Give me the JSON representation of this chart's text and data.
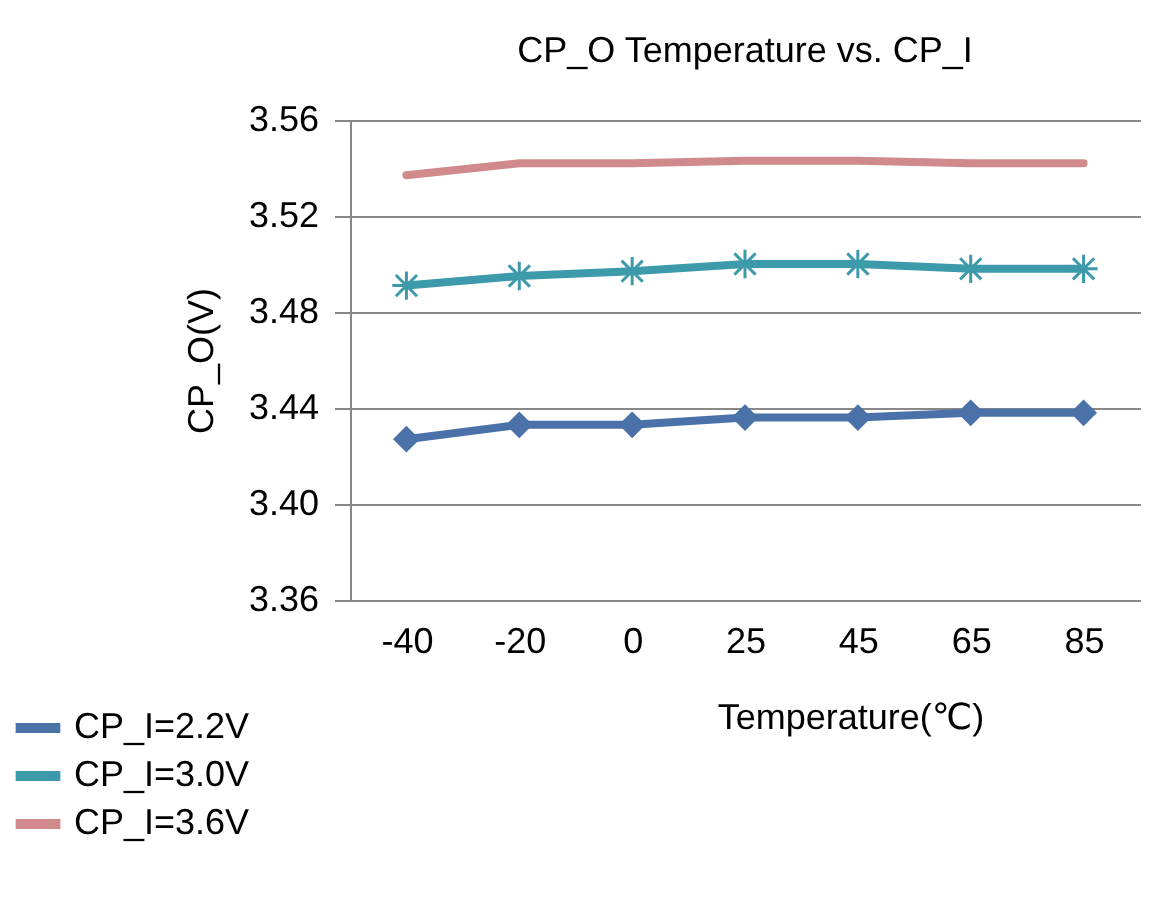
{
  "chart_data": {
    "type": "line",
    "title": "CP_O Temperature  vs.  CP_I",
    "xlabel": "Temperature(℃)",
    "ylabel": "CP_O(V)",
    "categories": [
      "-40",
      "-20",
      "0",
      "25",
      "45",
      "65",
      "85"
    ],
    "series": [
      {
        "name": "CP_I=2.2V",
        "color": "#4a72a8",
        "marker": "diamond",
        "values": [
          3.427,
          3.433,
          3.433,
          3.436,
          3.436,
          3.438,
          3.438
        ]
      },
      {
        "name": "CP_I=3.0V",
        "color": "#3d9aaa",
        "marker": "cross",
        "values": [
          3.491,
          3.495,
          3.497,
          3.5,
          3.5,
          3.498,
          3.498
        ]
      },
      {
        "name": "CP_I=3.6V",
        "color": "#d08a8c",
        "marker": "none",
        "values": [
          3.537,
          3.542,
          3.542,
          3.543,
          3.543,
          3.542,
          3.542
        ]
      }
    ],
    "ylim": [
      3.36,
      3.56
    ],
    "yticks": [
      3.36,
      {
        "value": 3.4,
        "label": "3.40"
      },
      3.44,
      3.48,
      3.52,
      3.56
    ],
    "grid": "y",
    "legend": "bottom left"
  }
}
